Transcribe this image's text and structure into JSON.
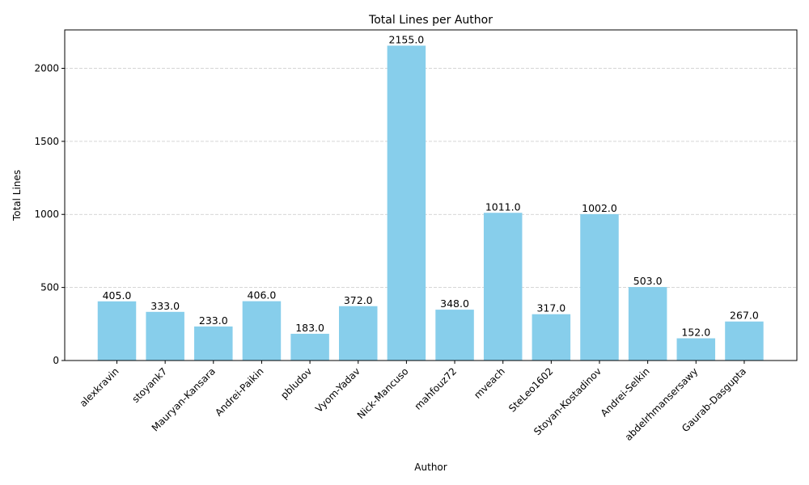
{
  "chart_data": {
    "type": "bar",
    "title": "Total Lines per Author",
    "xlabel": "Author",
    "ylabel": "Total Lines",
    "categories": [
      "alexkravin",
      "stoyank7",
      "Mauryan-Kansara",
      "Andrei-Paikin",
      "pbludov",
      "Vyom-Yadav",
      "Nick-Mancuso",
      "mahfouz72",
      "mveach",
      "SteLeo1602",
      "Stoyan-Kostadinov",
      "Andrei-Selkin",
      "abdelrhmansersawy",
      "Gaurab-Dasgupta"
    ],
    "values": [
      405,
      333,
      233,
      406,
      183,
      372,
      2155,
      348,
      1011,
      317,
      1002,
      503,
      152,
      267
    ],
    "value_labels": [
      "405.0",
      "333.0",
      "233.0",
      "406.0",
      "183.0",
      "372.0",
      "2155.0",
      "348.0",
      "1011.0",
      "317.0",
      "1002.0",
      "503.0",
      "152.0",
      "267.0"
    ],
    "ylim": [
      0,
      2262.75
    ],
    "yticks": [
      0,
      500,
      1000,
      1500,
      2000
    ],
    "ygrid": true,
    "bar_color": "#87ceeb",
    "grid_color": "#c8c8c8"
  }
}
